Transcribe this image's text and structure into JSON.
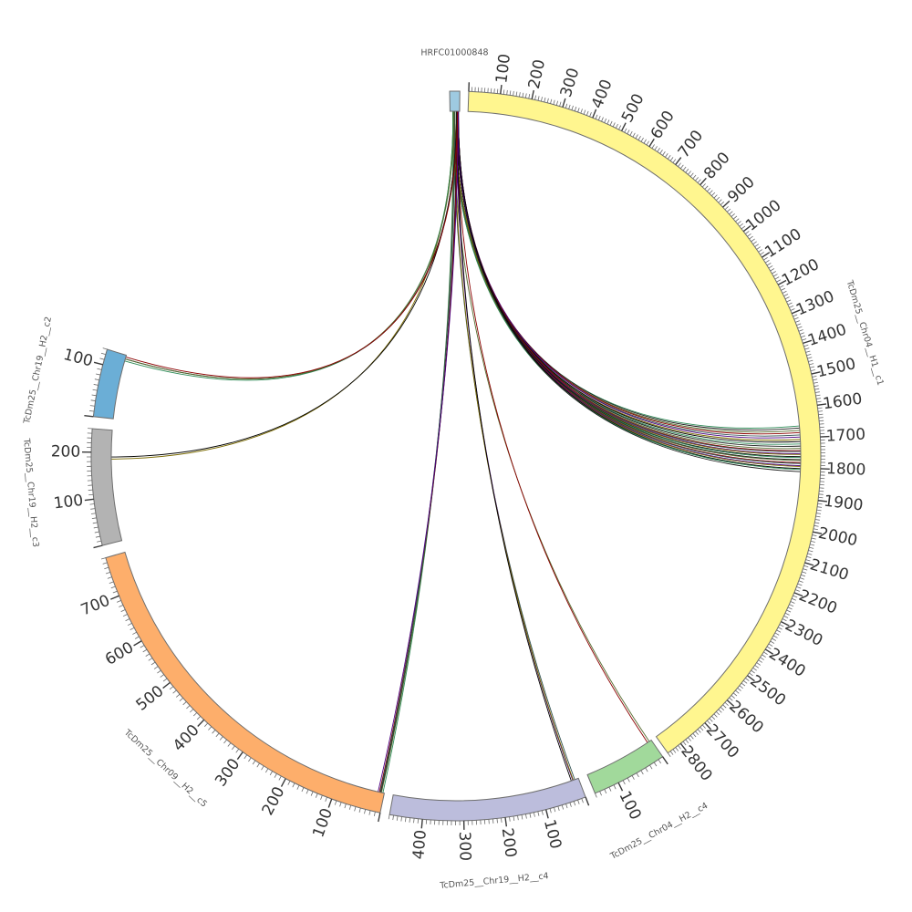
{
  "figure": {
    "type": "circos"
  },
  "chart_data": {
    "type": "circos",
    "segments": [
      {
        "name": "HRFC01000848",
        "start": 0,
        "end": 5,
        "color": "#9ecae1",
        "label_tick_step": 0
      },
      {
        "name": "TcDm25__Chr04__H1__c1",
        "start": 0,
        "end": 2850,
        "color": "#fff68f",
        "label_tick_step": 100
      },
      {
        "name": "TcDm25__Chr04__H2__c4",
        "start": 0,
        "end": 150,
        "color": "#a1d99b",
        "label_tick_step": 100
      },
      {
        "name": "TcDm25__Chr19__H2__c4",
        "start": 0,
        "end": 480,
        "color": "#bcbddc",
        "label_tick_step": 100
      },
      {
        "name": "TcDm25__Chr09__H2__c5",
        "start": 0,
        "end": 780,
        "color": "#fdae6b",
        "label_tick_step": 100
      },
      {
        "name": "TcDm25__Chr19__H2__c3",
        "start": 0,
        "end": 250,
        "color": "#b3b3b3",
        "label_tick_step": 100
      },
      {
        "name": "TcDm25__Chr19__H2__c2",
        "start": 0,
        "end": 130,
        "color": "#6baed6",
        "label_tick_step": 100
      }
    ],
    "links": [
      {
        "from": "HRFC01000848",
        "to": "TcDm25__Chr04__H1__c1",
        "positions": [
          1660,
          1675,
          1690,
          1705,
          1720,
          1735,
          1745,
          1755,
          1765,
          1775,
          1785,
          1795,
          1805
        ]
      },
      {
        "from": "HRFC01000848",
        "to": "TcDm25__Chr04__H2__c4",
        "positions": [
          5
        ]
      },
      {
        "from": "HRFC01000848",
        "to": "TcDm25__Chr19__H2__c4",
        "positions": [
          10,
          14
        ]
      },
      {
        "from": "HRFC01000848",
        "to": "TcDm25__Chr09__H2__c5",
        "positions": [
          3,
          6,
          9
        ]
      },
      {
        "from": "HRFC01000848",
        "to": "TcDm25__Chr19__H2__c3",
        "positions": [
          185
        ]
      },
      {
        "from": "HRFC01000848",
        "to": "TcDm25__Chr19__H2__c2",
        "positions": [
          118,
          122
        ]
      }
    ],
    "link_colors": [
      "#2e8b57",
      "#1a1a1a",
      "#556b2f",
      "#8b0000",
      "#2f4f4f",
      "#4b0082",
      "#7a6a00",
      "#000000"
    ]
  }
}
